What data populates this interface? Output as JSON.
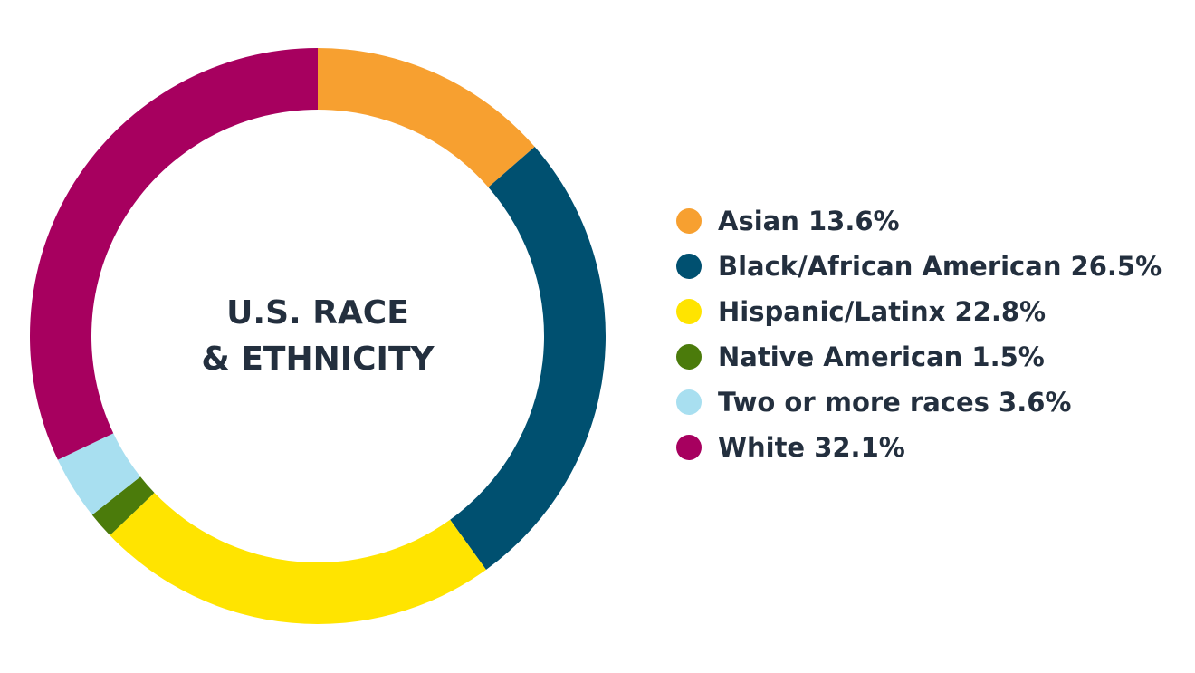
{
  "chart_data": {
    "type": "pie",
    "variant": "donut",
    "title_lines": [
      "U.S. RACE",
      "& ETHNICITY"
    ],
    "slices": [
      {
        "label": "Asian 13.6%",
        "value": 13.6,
        "color": "#f7a030"
      },
      {
        "label": "Black/African American 26.5%",
        "value": 26.5,
        "color": "#005070"
      },
      {
        "label": "Hispanic/Latinx 22.8%",
        "value": 22.8,
        "color": "#ffe400"
      },
      {
        "label": "Native American 1.5%",
        "value": 1.5,
        "color": "#4b7b0b"
      },
      {
        "label": "Two or more races 3.6%",
        "value": 3.6,
        "color": "#a8dff0"
      },
      {
        "label": "White 32.1%",
        "value": 32.1,
        "color": "#a7005f"
      }
    ],
    "legend_placement": "right",
    "start_angle": "top",
    "direction": "clockwise"
  }
}
